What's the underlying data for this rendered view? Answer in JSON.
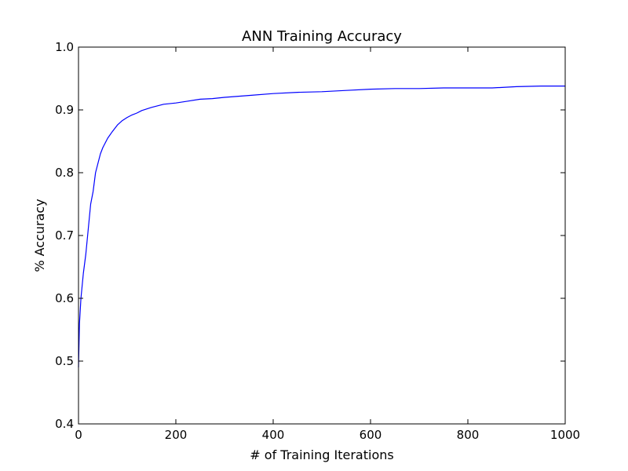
{
  "chart_data": {
    "type": "line",
    "title": "ANN Training Accuracy",
    "xlabel": "# of Training Iterations",
    "ylabel": "% Accuracy",
    "xlim": [
      0,
      1000
    ],
    "ylim": [
      0.4,
      1.0
    ],
    "xticks": [
      "0",
      "200",
      "400",
      "600",
      "800",
      "1000"
    ],
    "yticks": [
      "0.4",
      "0.5",
      "0.6",
      "0.7",
      "0.8",
      "0.9",
      "1.0"
    ],
    "grid": false,
    "legend": "none",
    "series": [
      {
        "color": "#0000ff",
        "x": [
          0,
          2,
          5,
          10,
          15,
          20,
          25,
          30,
          35,
          40,
          45,
          50,
          60,
          70,
          80,
          90,
          100,
          110,
          120,
          130,
          150,
          175,
          200,
          225,
          250,
          275,
          300,
          350,
          400,
          450,
          500,
          550,
          600,
          650,
          700,
          750,
          800,
          850,
          900,
          950,
          1000
        ],
        "y": [
          0.49,
          0.56,
          0.6,
          0.64,
          0.67,
          0.71,
          0.75,
          0.77,
          0.8,
          0.815,
          0.83,
          0.84,
          0.855,
          0.866,
          0.876,
          0.883,
          0.888,
          0.892,
          0.895,
          0.899,
          0.904,
          0.909,
          0.911,
          0.914,
          0.917,
          0.918,
          0.92,
          0.923,
          0.926,
          0.928,
          0.929,
          0.931,
          0.933,
          0.934,
          0.934,
          0.935,
          0.935,
          0.935,
          0.937,
          0.938,
          0.938
        ]
      }
    ]
  }
}
